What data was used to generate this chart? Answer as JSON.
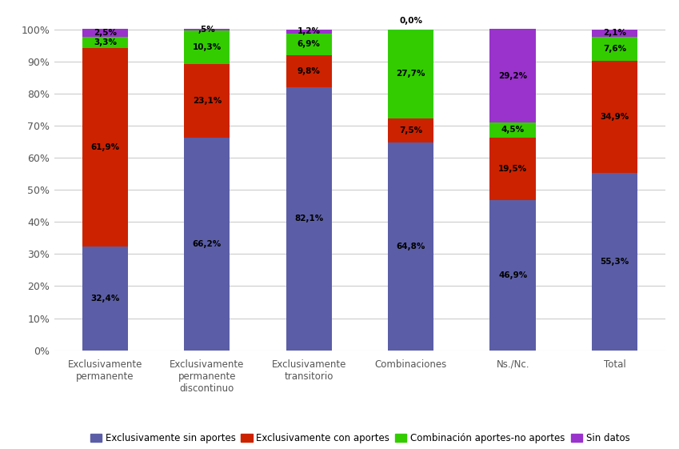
{
  "categories": [
    "Exclusivamente\npermanente",
    "Exclusivamente\npermanente\ndiscontinuo",
    "Exclusivamente\ntransitorio",
    "Combinaciones",
    "Ns./Nc.",
    "Total"
  ],
  "series": {
    "Exclusivamente sin aportes": [
      32.4,
      66.2,
      82.1,
      64.8,
      46.9,
      55.3
    ],
    "Exclusivamente con aportes": [
      61.9,
      23.1,
      9.8,
      7.5,
      19.5,
      34.9
    ],
    "Combinación aportes-no aportes": [
      3.3,
      10.3,
      6.9,
      27.7,
      4.5,
      7.6
    ],
    "Sin datos": [
      2.5,
      0.5,
      1.2,
      0.0,
      29.2,
      2.1
    ]
  },
  "colors": {
    "Exclusivamente sin aportes": "#5B5EA6",
    "Exclusivamente con aportes": "#CC2200",
    "Combinación aportes-no aportes": "#33CC00",
    "Sin datos": "#9933CC"
  },
  "labels": {
    "Exclusivamente sin aportes": [
      [
        32.4,
        "32,4%"
      ],
      [
        66.2,
        "66,2%"
      ],
      [
        82.1,
        "82,1%"
      ],
      [
        64.8,
        "64,8%"
      ],
      [
        46.9,
        "46,9%"
      ],
      [
        55.3,
        "55,3%"
      ]
    ],
    "Exclusivamente con aportes": [
      [
        61.9,
        "61,9%"
      ],
      [
        23.1,
        "23,1%"
      ],
      [
        9.8,
        "9,8%"
      ],
      [
        7.5,
        "7,5%"
      ],
      [
        19.5,
        "19,5%"
      ],
      [
        34.9,
        "34,9%"
      ]
    ],
    "Combinación aportes-no aportes": [
      [
        3.3,
        "3,3%"
      ],
      [
        10.3,
        "10,3%"
      ],
      [
        6.9,
        "6,9%"
      ],
      [
        27.7,
        "27,7%"
      ],
      [
        4.5,
        "4,5%"
      ],
      [
        7.6,
        "7,6%"
      ]
    ],
    "Sin datos": [
      [
        2.5,
        "2,5%"
      ],
      [
        0.5,
        ",5%"
      ],
      [
        1.2,
        "1,2%"
      ],
      [
        0.0,
        "0,0%"
      ],
      [
        29.2,
        "29,2%"
      ],
      [
        2.1,
        "2,1%"
      ]
    ]
  },
  "ylim": [
    0,
    105
  ],
  "yticks": [
    0,
    10,
    20,
    30,
    40,
    50,
    60,
    70,
    80,
    90,
    100
  ],
  "ytick_labels": [
    "0%",
    "10%",
    "20%",
    "30%",
    "40%",
    "50%",
    "60%",
    "70%",
    "80%",
    "90%",
    "100%"
  ],
  "background_color": "#FFFFFF",
  "grid_color": "#CCCCCC",
  "bar_width": 0.45,
  "series_order": [
    "Exclusivamente sin aportes",
    "Exclusivamente con aportes",
    "Combinación aportes-no aportes",
    "Sin datos"
  ],
  "legend_order": [
    "Exclusivamente sin aportes",
    "Exclusivamente con aportes",
    "Combinación aportes-no aportes",
    "Sin datos"
  ]
}
